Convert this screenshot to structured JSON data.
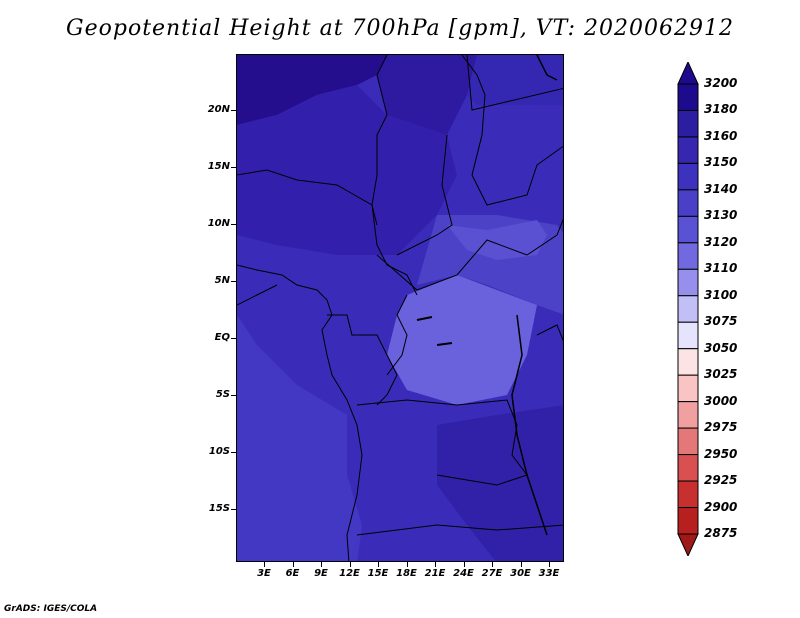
{
  "title": "Geopotential Height at 700hPa [gpm], VT: 2020062912",
  "credit": "GrADS: IGES/COLA",
  "y_axis_labels": [
    "20N",
    "15N",
    "10N",
    "5N",
    "EQ",
    "5S",
    "10S",
    "15S"
  ],
  "x_axis_labels": [
    "3E",
    "6E",
    "9E",
    "12E",
    "15E",
    "18E",
    "21E",
    "24E",
    "27E",
    "30E",
    "33E"
  ],
  "colorbar": {
    "levels": [
      "3200",
      "3180",
      "3160",
      "3150",
      "3140",
      "3130",
      "3120",
      "3110",
      "3100",
      "3075",
      "3050",
      "3025",
      "3000",
      "2975",
      "2950",
      "2925",
      "2900",
      "2875"
    ],
    "colors": [
      "#1e0a8c",
      "#2b1ea0",
      "#3726b0",
      "#3d32bd",
      "#4a40c8",
      "#5a52d4",
      "#7268e0",
      "#9690ec",
      "#c2bef6",
      "#e6e4fc",
      "#fce4e4",
      "#f8c4c4",
      "#f0a0a0",
      "#e47878",
      "#d85050",
      "#c83030",
      "#b82020",
      "#a01818"
    ]
  },
  "map_colors": {
    "darkest": "#260f90",
    "dark": "#2f1fa6",
    "mid_dark": "#3626b4",
    "mid": "#3d31bd",
    "mid_light": "#4a40c8",
    "light": "#5d55d2",
    "lightest": "#6e66de"
  }
}
